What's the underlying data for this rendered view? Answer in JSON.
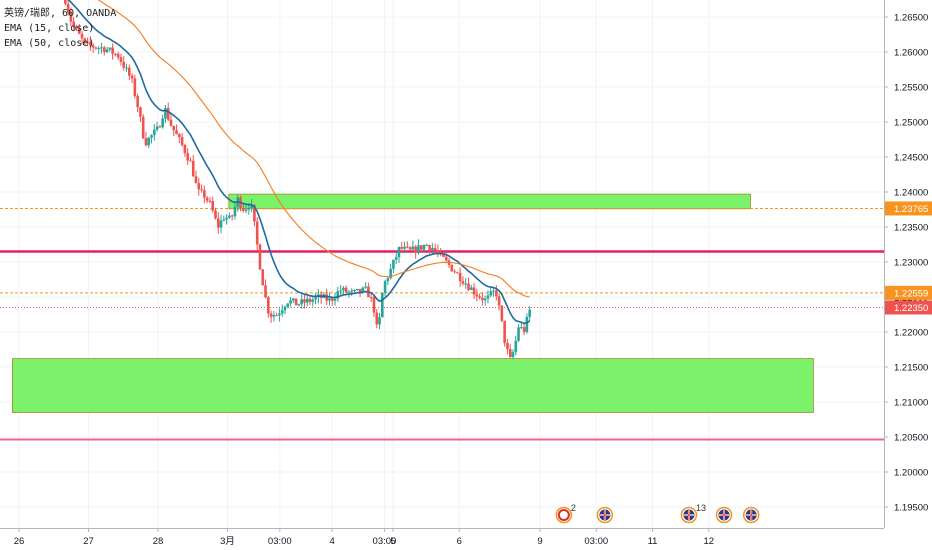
{
  "legend": {
    "symbol_line": "英镑/瑞郎, 60, OANDA",
    "ema15": "EMA (15, close)",
    "ema50": "EMA (50, close)"
  },
  "chart_data": {
    "type": "candlestick",
    "symbol": "英镑/瑞郎",
    "interval": "60",
    "source": "OANDA",
    "ylim": [
      1.1925,
      1.2675
    ],
    "y_ticks": [
      "1.26500",
      "1.26000",
      "1.25500",
      "1.25000",
      "1.24500",
      "1.24000",
      "1.23500",
      "1.23000",
      "1.22500",
      "1.22000",
      "1.21500",
      "1.21000",
      "1.20500",
      "1.20000",
      "1.19500"
    ],
    "x_ticks": [
      {
        "label": "26",
        "pos": 0.0
      },
      {
        "label": "27",
        "pos": 10.5
      },
      {
        "label": "28",
        "pos": 21.0
      },
      {
        "label": "3月",
        "pos": 31.5
      },
      {
        "label": "03:00",
        "pos": 39.4
      },
      {
        "label": "4",
        "pos": 47.3
      },
      {
        "label": "03:00",
        "pos": 55.2
      },
      {
        "label": "5",
        "pos": 56.5
      },
      {
        "label": "6",
        "pos": 66.5
      },
      {
        "label": "9",
        "pos": 78.7
      },
      {
        "label": "03:00",
        "pos": 87.2
      },
      {
        "label": "11",
        "pos": 95.7
      },
      {
        "label": "12",
        "pos": 104.2
      }
    ],
    "price_line_labels": [
      {
        "value": 1.23765,
        "text": "1.23765",
        "color": "#f7931e"
      },
      {
        "value": 1.22559,
        "text": "1.22559",
        "color": "#f7931e"
      },
      {
        "value": 1.2235,
        "text": "1.22350",
        "color": "#ef5350"
      }
    ],
    "horizontal_lines": [
      {
        "value": 1.2315,
        "color": "#e91e63"
      },
      {
        "value": 1.20465,
        "color": "#f06292"
      }
    ],
    "dashed_lines": [
      {
        "value": 1.23765,
        "color": "#f7931e"
      },
      {
        "value": 1.22559,
        "color": "#f7931e"
      }
    ],
    "zones": [
      {
        "from": 1.2376,
        "to": 1.2397,
        "x_from": 31.7,
        "x_to": 110.5
      },
      {
        "from": 1.2085,
        "to": 1.2162,
        "x_from": -1,
        "x_to": 120
      }
    ],
    "events": [
      {
        "x": 82.3,
        "label": "2",
        "icon": "calendar-icon"
      },
      {
        "x": 88.5,
        "label": "",
        "icon": "uk-flag-icon"
      },
      {
        "x": 101.2,
        "label": "13",
        "icon": "uk-flag-icon"
      },
      {
        "x": 106.5,
        "label": "",
        "icon": "uk-flag-icon"
      },
      {
        "x": 110.6,
        "label": "",
        "icon": "uk-flag-icon"
      }
    ],
    "close_keys": [
      [
        7,
        1.2675
      ],
      [
        8,
        1.264
      ],
      [
        10,
        1.261
      ],
      [
        13,
        1.2605
      ],
      [
        15,
        1.2595
      ],
      [
        17,
        1.256
      ],
      [
        18,
        1.252
      ],
      [
        19,
        1.247
      ],
      [
        21,
        1.249
      ],
      [
        22,
        1.252
      ],
      [
        23,
        1.2495
      ],
      [
        25,
        1.246
      ],
      [
        26,
        1.244
      ],
      [
        27,
        1.24
      ],
      [
        28,
        1.2395
      ],
      [
        29,
        1.238
      ],
      [
        30,
        1.235
      ],
      [
        31,
        1.2365
      ],
      [
        32,
        1.236
      ],
      [
        33,
        1.239
      ],
      [
        34,
        1.2375
      ],
      [
        35,
        1.2385
      ],
      [
        35.6,
        1.235
      ],
      [
        36.4,
        1.2295
      ],
      [
        37.2,
        1.225
      ],
      [
        37.8,
        1.2225
      ],
      [
        39.0,
        1.2225
      ],
      [
        40.5,
        1.2245
      ],
      [
        42,
        1.224
      ],
      [
        44,
        1.2245
      ],
      [
        45.5,
        1.225
      ],
      [
        47,
        1.2245
      ],
      [
        48.5,
        1.226
      ],
      [
        50.5,
        1.2255
      ],
      [
        52.5,
        1.226
      ],
      [
        53.5,
        1.224
      ],
      [
        54.2,
        1.2195
      ],
      [
        55.0,
        1.2265
      ],
      [
        56.2,
        1.229
      ],
      [
        57.5,
        1.232
      ],
      [
        59,
        1.2315
      ],
      [
        60.5,
        1.232
      ],
      [
        61.5,
        1.2325
      ],
      [
        62.5,
        1.232
      ],
      [
        63.5,
        1.231
      ],
      [
        64.5,
        1.23
      ],
      [
        66,
        1.2285
      ],
      [
        67.5,
        1.227
      ],
      [
        69,
        1.2255
      ],
      [
        70.5,
        1.2245
      ],
      [
        72,
        1.226
      ],
      [
        72.8,
        1.222
      ],
      [
        73.5,
        1.218
      ],
      [
        74.2,
        1.216
      ],
      [
        74.8,
        1.2175
      ],
      [
        75.5,
        1.221
      ],
      [
        76.2,
        1.22
      ],
      [
        77,
        1.2225
      ],
      [
        77.5,
        1.2245
      ]
    ],
    "series": [
      {
        "name": "EMA (15, close)",
        "color": "#1e6b9f",
        "period": 15
      },
      {
        "name": "EMA (50, close)",
        "color": "#f47c20",
        "period": 50
      }
    ],
    "candle_colors": {
      "up": "#26a69a",
      "down": "#ef5350"
    },
    "last_price": 1.2235
  }
}
